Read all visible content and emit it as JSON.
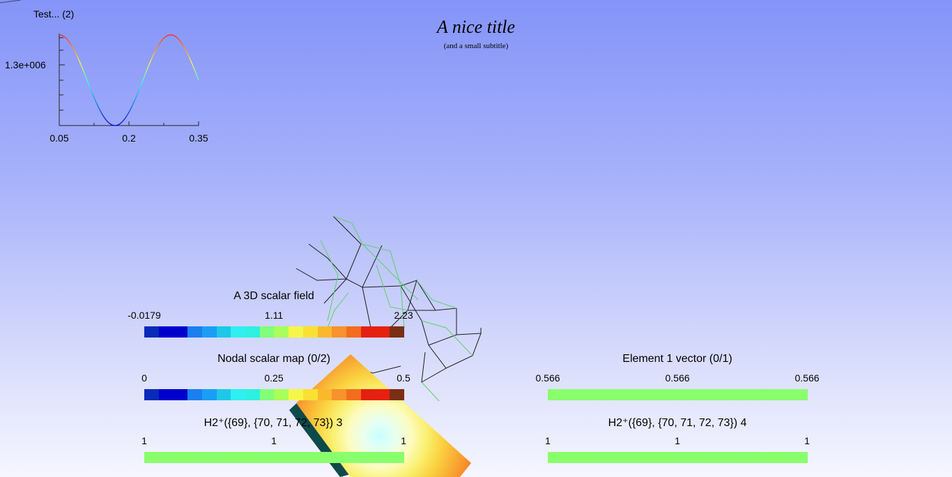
{
  "title": "A nice title",
  "subtitle": "(and a small subtitle)",
  "plot": {
    "legend": "Test... (2)",
    "y_tick": "1.3e+006",
    "x_ticks": [
      "0.05",
      "0.2",
      "0.35"
    ]
  },
  "scalar_bars": [
    {
      "title": "A 3D scalar field",
      "ticks": [
        "-0.0179",
        "1.11",
        "2.23"
      ]
    },
    {
      "title": "Nodal scalar map (0/2)",
      "ticks": [
        "0",
        "0.25",
        "0.5"
      ]
    },
    {
      "title": "H2⁺({69}, {70, 71, 72, 73}) 3",
      "ticks": [
        "1",
        "1",
        "1"
      ]
    },
    {
      "title": "Element 1 vector (0/1)",
      "ticks": [
        "0.566",
        "0.566",
        "0.566"
      ]
    },
    {
      "title": "H2⁺({69}, {70, 71, 72, 73}) 4",
      "ticks": [
        "1",
        "1",
        "1"
      ]
    }
  ],
  "colormap": [
    "#0a2ab8",
    "#0000cc",
    "#0000cc",
    "#1a7fef",
    "#1a9ef5",
    "#1ec8e8",
    "#2ef0f0",
    "#2ef0e0",
    "#82ff78",
    "#a8ff58",
    "#f6f64a",
    "#fae032",
    "#fab82c",
    "#f8922c",
    "#f46c1e",
    "#e42010",
    "#e82010",
    "#7a2e14"
  ],
  "uniform_color": "#8aff6e"
}
